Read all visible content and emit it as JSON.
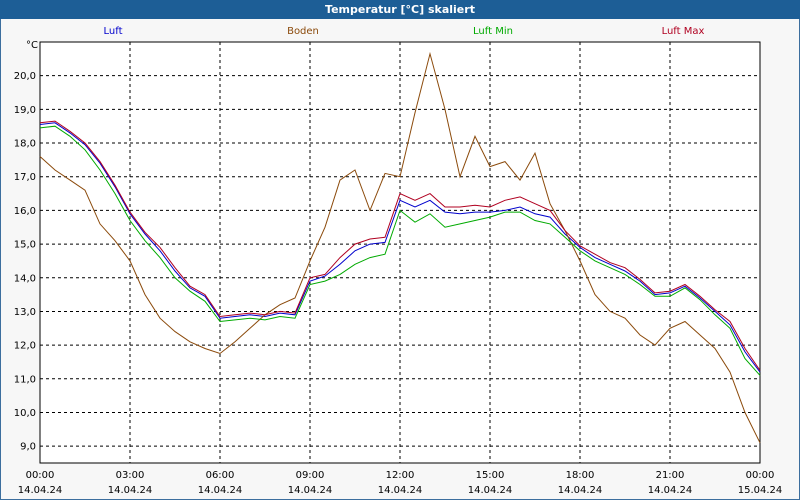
{
  "window": {
    "title": "Temperatur [°C] skaliert"
  },
  "colors": {
    "luft": "#0000cc",
    "boden": "#8b4a0b",
    "luft_min": "#00aa00",
    "luft_max": "#b00020",
    "titlebar": "#1d5e96"
  },
  "chart_data": {
    "type": "line",
    "title": "Temperatur [°C] skaliert",
    "ylabel": "°C",
    "ylim": [
      8.5,
      21.0
    ],
    "xlim": [
      0,
      24
    ],
    "grid": true,
    "legend_position": "top",
    "y_ticks": [
      "9,0",
      "10,0",
      "11,0",
      "12,0",
      "13,0",
      "14,0",
      "15,0",
      "16,0",
      "17,0",
      "18,0",
      "19,0",
      "20,0"
    ],
    "x_ticks": [
      {
        "time": "00:00",
        "date": "14.04.24"
      },
      {
        "time": "03:00",
        "date": "14.04.24"
      },
      {
        "time": "06:00",
        "date": "14.04.24"
      },
      {
        "time": "09:00",
        "date": "14.04.24"
      },
      {
        "time": "12:00",
        "date": "14.04.24"
      },
      {
        "time": "15:00",
        "date": "14.04.24"
      },
      {
        "time": "18:00",
        "date": "14.04.24"
      },
      {
        "time": "21:00",
        "date": "14.04.24"
      },
      {
        "time": "00:00",
        "date": "15.04.24"
      }
    ],
    "x_hours": [
      0,
      0.5,
      1,
      1.5,
      2,
      2.5,
      3,
      3.5,
      4,
      4.5,
      5,
      5.5,
      6,
      6.5,
      7,
      7.5,
      8,
      8.5,
      9,
      9.5,
      10,
      10.5,
      11,
      11.5,
      12,
      12.5,
      13,
      13.5,
      14,
      14.5,
      15,
      15.5,
      16,
      16.5,
      17,
      17.5,
      18,
      18.5,
      19,
      19.5,
      20,
      20.5,
      21,
      21.5,
      22,
      22.5,
      23,
      23.5,
      24
    ],
    "series": [
      {
        "name": "Luft",
        "key": "luft",
        "values": [
          18.55,
          18.6,
          18.3,
          17.95,
          17.4,
          16.7,
          15.9,
          15.3,
          14.8,
          14.2,
          13.7,
          13.45,
          12.8,
          12.85,
          12.9,
          12.85,
          12.95,
          12.9,
          13.9,
          14.05,
          14.4,
          14.8,
          15.0,
          15.05,
          16.3,
          16.1,
          16.3,
          15.95,
          15.9,
          15.95,
          15.95,
          16.0,
          16.1,
          15.9,
          15.8,
          15.3,
          14.9,
          14.6,
          14.4,
          14.2,
          13.9,
          13.5,
          13.55,
          13.75,
          13.4,
          13.0,
          12.6,
          11.8,
          11.2
        ]
      },
      {
        "name": "Boden",
        "key": "boden",
        "values": [
          17.6,
          17.2,
          16.9,
          16.6,
          15.6,
          15.1,
          14.5,
          13.5,
          12.8,
          12.4,
          12.1,
          11.9,
          11.75,
          12.1,
          12.5,
          12.9,
          13.2,
          13.4,
          14.5,
          15.5,
          16.9,
          17.2,
          16.0,
          17.1,
          17.0,
          18.9,
          20.65,
          19.0,
          17.0,
          18.2,
          17.3,
          17.45,
          16.9,
          17.7,
          16.2,
          15.4,
          14.5,
          13.5,
          13.0,
          12.8,
          12.3,
          12.0,
          12.5,
          12.7,
          12.3,
          11.9,
          11.2,
          10.0,
          9.1
        ]
      },
      {
        "name": "Luft Min",
        "key": "luft_min",
        "values": [
          18.45,
          18.5,
          18.2,
          17.8,
          17.2,
          16.5,
          15.7,
          15.1,
          14.6,
          14.0,
          13.6,
          13.3,
          12.7,
          12.75,
          12.8,
          12.75,
          12.85,
          12.8,
          13.8,
          13.9,
          14.1,
          14.4,
          14.6,
          14.7,
          16.0,
          15.65,
          15.9,
          15.5,
          15.6,
          15.7,
          15.8,
          15.95,
          15.95,
          15.7,
          15.6,
          15.2,
          14.8,
          14.5,
          14.3,
          14.1,
          13.8,
          13.45,
          13.45,
          13.7,
          13.35,
          12.9,
          12.5,
          11.6,
          11.1
        ]
      },
      {
        "name": "Luft Max",
        "key": "luft_max",
        "values": [
          18.6,
          18.65,
          18.35,
          18.0,
          17.45,
          16.75,
          15.95,
          15.35,
          14.9,
          14.3,
          13.75,
          13.5,
          12.85,
          12.9,
          12.95,
          12.9,
          13.0,
          12.95,
          14.0,
          14.1,
          14.6,
          15.0,
          15.15,
          15.2,
          16.5,
          16.3,
          16.5,
          16.1,
          16.1,
          16.15,
          16.1,
          16.3,
          16.4,
          16.2,
          16.0,
          15.4,
          14.95,
          14.7,
          14.45,
          14.3,
          13.95,
          13.55,
          13.6,
          13.8,
          13.45,
          13.05,
          12.7,
          11.9,
          11.25
        ]
      }
    ]
  }
}
